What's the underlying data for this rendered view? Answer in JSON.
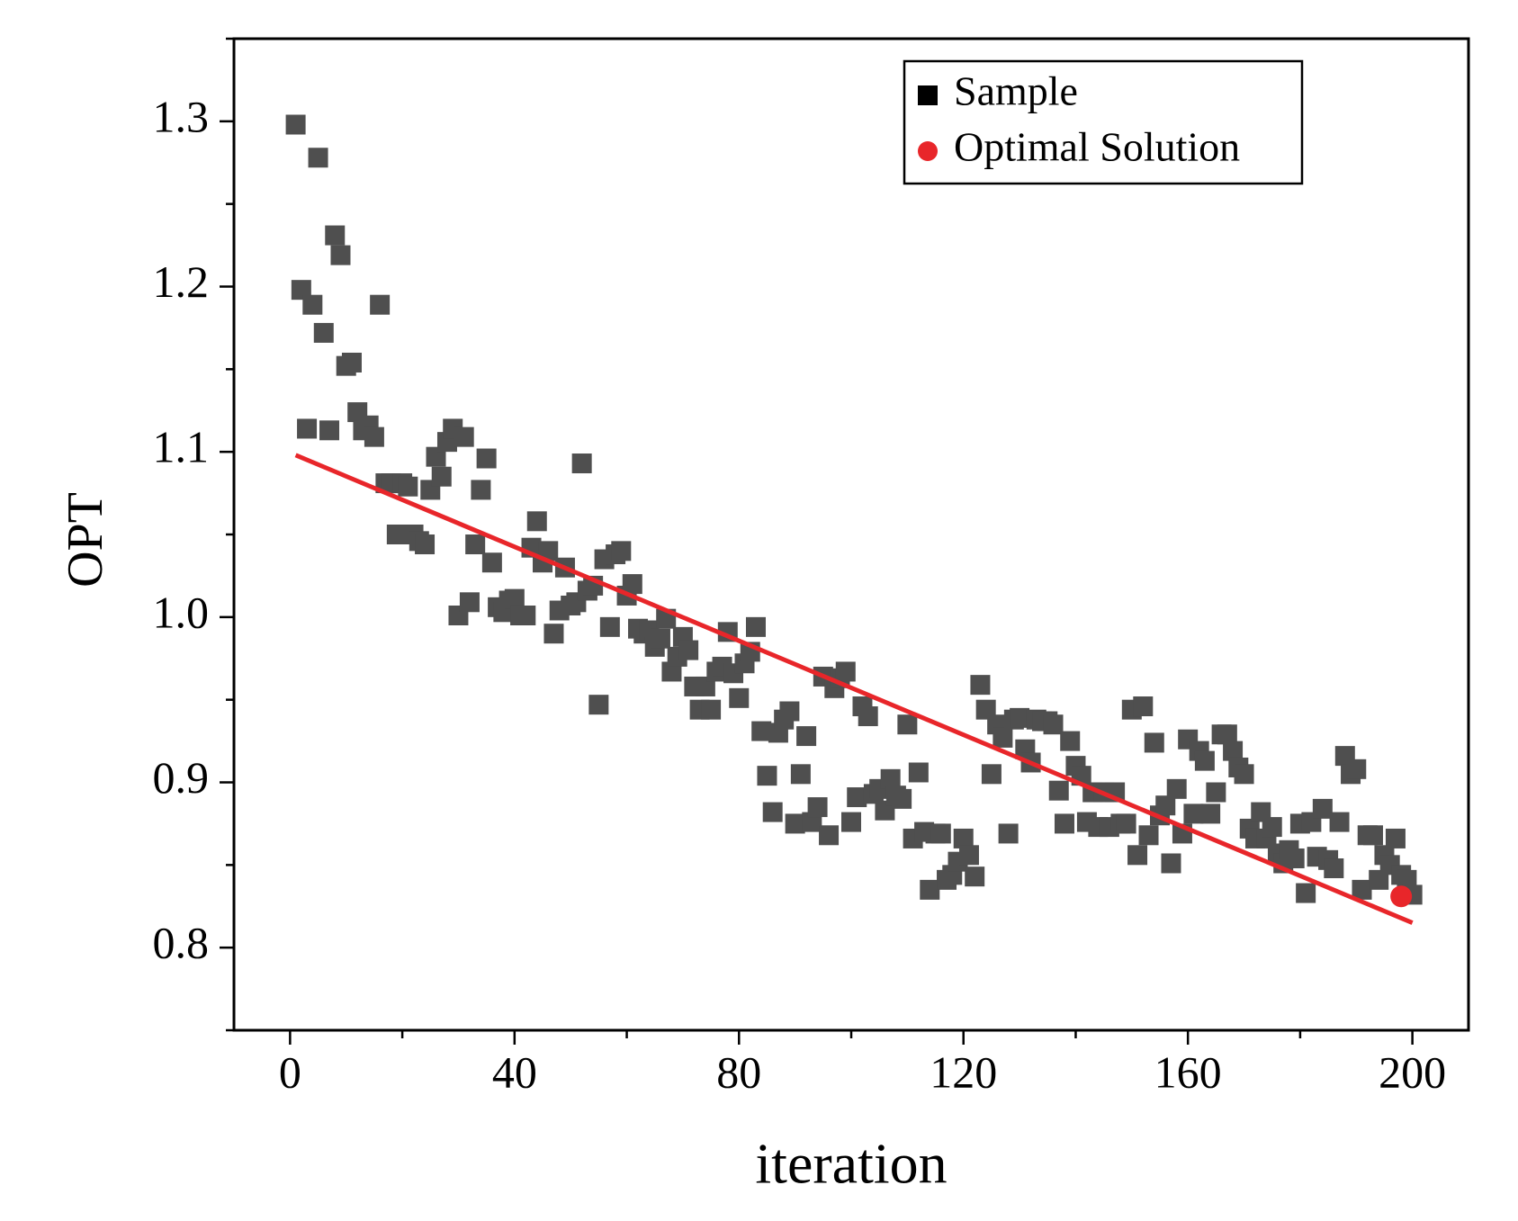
{
  "chart_data": {
    "type": "scatter",
    "xlabel": "iteration",
    "ylabel": "OPT",
    "xlim": [
      -10,
      210
    ],
    "ylim": [
      0.75,
      1.35
    ],
    "xticks": [
      0,
      40,
      80,
      120,
      160,
      200
    ],
    "yticks": [
      0.8,
      0.9,
      {
        "value": 1,
        "label": "1.0"
      },
      1.1,
      1.2,
      1.3
    ],
    "xminorticks": [
      20,
      60,
      100,
      140,
      180
    ],
    "yminorticks": [
      0.75,
      0.85,
      0.95,
      1.05,
      1.15,
      1.25,
      1.35
    ],
    "legend": "upper right",
    "series": [
      {
        "name": "Sample",
        "color": "#4f4f4f",
        "legend_color": "#000000",
        "marker": "square",
        "x": [
          1,
          2,
          3,
          4,
          5,
          6,
          7,
          8,
          9,
          10,
          11,
          12,
          13,
          14,
          15,
          16,
          17,
          18,
          19,
          20,
          21,
          22,
          23,
          24,
          25,
          26,
          27,
          28,
          29,
          30,
          31,
          32,
          33,
          34,
          35,
          36,
          37,
          38,
          39,
          40,
          41,
          42,
          43,
          44,
          45,
          46,
          47,
          48,
          49,
          50,
          51,
          52,
          53,
          54,
          55,
          56,
          57,
          58,
          59,
          60,
          61,
          62,
          63,
          64,
          65,
          66,
          67,
          68,
          69,
          70,
          71,
          72,
          73,
          74,
          75,
          76,
          77,
          78,
          79,
          80,
          81,
          82,
          83,
          84,
          85,
          86,
          87,
          88,
          89,
          90,
          91,
          92,
          93,
          94,
          95,
          96,
          97,
          98,
          99,
          100,
          101,
          102,
          103,
          104,
          105,
          106,
          107,
          108,
          109,
          110,
          111,
          112,
          113,
          114,
          115,
          116,
          117,
          118,
          119,
          120,
          121,
          122,
          123,
          124,
          125,
          126,
          127,
          128,
          129,
          130,
          131,
          132,
          133,
          134,
          135,
          136,
          137,
          138,
          139,
          140,
          141,
          142,
          143,
          144,
          145,
          146,
          147,
          148,
          149,
          150,
          151,
          152,
          153,
          154,
          155,
          156,
          157,
          158,
          159,
          160,
          161,
          162,
          163,
          164,
          165,
          166,
          167,
          168,
          169,
          170,
          171,
          172,
          173,
          174,
          175,
          176,
          177,
          178,
          179,
          180,
          181,
          182,
          183,
          184,
          185,
          186,
          187,
          188,
          189,
          190,
          191,
          192,
          193,
          194,
          195,
          196,
          197,
          198,
          199,
          200
        ],
        "values": [
          1.298,
          1.198,
          1.114,
          1.189,
          1.278,
          1.172,
          1.113,
          1.231,
          1.219,
          1.152,
          1.154,
          1.124,
          1.113,
          1.116,
          1.109,
          1.189,
          1.081,
          1.081,
          1.05,
          1.081,
          1.079,
          1.05,
          1.046,
          1.044,
          1.077,
          1.097,
          1.085,
          1.106,
          1.114,
          1.001,
          1.109,
          1.009,
          1.044,
          1.077,
          1.096,
          1.033,
          1.006,
          1.003,
          1.01,
          1.011,
          1.001,
          1.001,
          1.042,
          1.058,
          1.033,
          1.04,
          0.99,
          1.004,
          1.03,
          1.007,
          1.009,
          1.093,
          1.016,
          1.019,
          0.947,
          1.035,
          0.994,
          1.038,
          1.04,
          1.013,
          1.02,
          0.993,
          0.99,
          0.992,
          0.982,
          0.987,
          0.999,
          0.967,
          0.976,
          0.988,
          0.98,
          0.958,
          0.944,
          0.958,
          0.944,
          0.967,
          0.97,
          0.991,
          0.966,
          0.951,
          0.972,
          0.979,
          0.994,
          0.931,
          0.904,
          0.882,
          0.93,
          0.938,
          0.943,
          0.875,
          0.905,
          0.928,
          0.876,
          0.885,
          0.964,
          0.868,
          0.957,
          0.963,
          0.967,
          0.876,
          0.891,
          0.946,
          0.94,
          0.893,
          0.896,
          0.883,
          0.902,
          0.892,
          0.89,
          0.935,
          0.866,
          0.906,
          0.87,
          0.835,
          0.869,
          0.869,
          0.841,
          0.844,
          0.852,
          0.866,
          0.856,
          0.843,
          0.959,
          0.944,
          0.905,
          0.935,
          0.927,
          0.869,
          0.938,
          0.939,
          0.92,
          0.912,
          0.938,
          0.937,
          0.937,
          0.935,
          0.895,
          0.875,
          0.925,
          0.91,
          0.904,
          0.876,
          0.894,
          0.873,
          0.894,
          0.873,
          0.894,
          0.875,
          0.875,
          0.944,
          0.856,
          0.946,
          0.868,
          0.924,
          0.88,
          0.886,
          0.851,
          0.896,
          0.869,
          0.926,
          0.881,
          0.919,
          0.913,
          0.881,
          0.894,
          0.929,
          0.929,
          0.919,
          0.909,
          0.905,
          0.872,
          0.866,
          0.882,
          0.866,
          0.873,
          0.857,
          0.851,
          0.859,
          0.854,
          0.875,
          0.833,
          0.876,
          0.855,
          0.884,
          0.853,
          0.848,
          0.876,
          0.916,
          0.905,
          0.908,
          0.835,
          0.868,
          0.868,
          0.841,
          0.856,
          0.85,
          0.866,
          0.844,
          0.841,
          0.832
        ]
      },
      {
        "name": "Optimal Solution",
        "color": "#e8262a",
        "legend_color": "#e8262a",
        "marker": "circle",
        "x": [
          198
        ],
        "values": [
          0.831
        ]
      }
    ],
    "trend": {
      "color": "#e8262a",
      "x": [
        1,
        200
      ],
      "values": [
        1.098,
        0.815
      ]
    }
  }
}
